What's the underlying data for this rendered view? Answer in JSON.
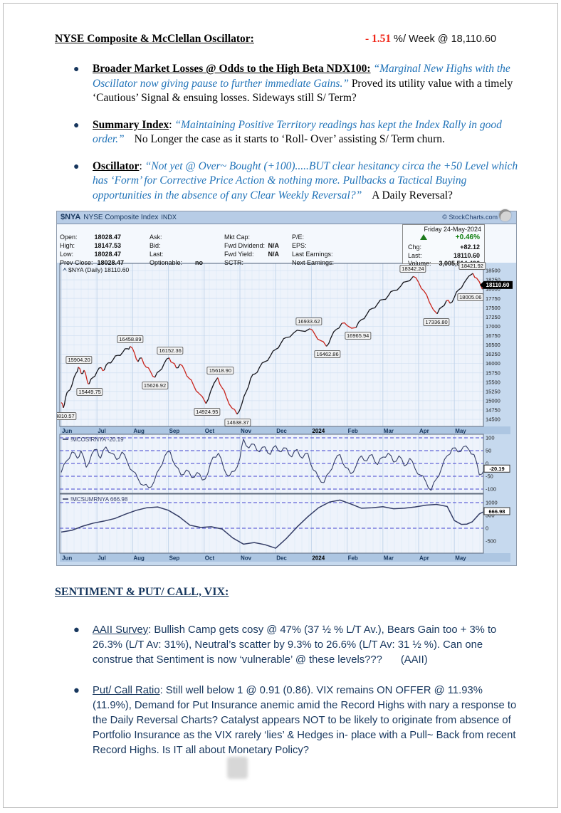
{
  "sec1": {
    "heading": "NYSE Composite & McClellan Oscillator:",
    "change": "- 1.51",
    "change_suffix": "%/ Week @ 18,110.60",
    "bullets": [
      {
        "lead": "Broader Market Losses @ Odds to the High Beta NDX100:",
        "sep": " ",
        "quote": "“Marginal New Highs with the Oscillator now giving pause to further immediate Gains.”",
        "tail": " Proved its utility value with a timely ‘Cautious’ Signal & ensuing losses. Sideways still S/ Term?"
      },
      {
        "lead": "Summary Index",
        "sep": ": ",
        "quote": "“Maintaining Positive Territory readings has kept the Index Rally in good order.”",
        "tail": "No Longer the case as it starts to ‘Roll- Over’ assisting S/ Term churn."
      },
      {
        "lead": "Oscillator",
        "sep": ": ",
        "quote": "“Not yet @ Over~ Bought (+100).....BUT clear hesitancy circa the +50 Level which has ‘Form’ for Corrective Price Action & nothing more. Pullbacks a Tactical Buying opportunities in the absence of any Clear Weekly Reversal?”",
        "tail": "A Daily Reversal?"
      }
    ]
  },
  "sec2": {
    "heading": "SENTIMENT & PUT/ CALL, VIX:",
    "bullets": [
      {
        "lead": "AAII Survey",
        "body": ": Bullish Camp gets cosy @ 47% (37 ½ % L/T Av.), Bears Gain too + 3% to 26.3% (L/T Av: 31%), Neutral’s scatter by 9.3% to 26.6% (L/T Av: 31 ½ %). Can one construe that Sentiment is now ‘vulnerable’ @ these levels???",
        "trail": "(AAII)"
      },
      {
        "lead": "Put/ Call Ratio",
        "body": ": Still well below 1 @ 0.91 (0.86). VIX remains ON OFFER @ 11.93% (11.9%), Demand for Put Insurance anemic amid the Record Highs with nary a response to the Daily Reversal Charts? Catalyst appears NOT to be likely to originate from absence of Portfolio Insurance as the VIX rarely ‘lies’ & Hedges in- place with a Pull~ Back from recent Record Highs. Is IT all about Monetary Policy?",
        "trail": ""
      }
    ]
  },
  "chart": {
    "symbol": "$NYA",
    "name": "NYSE Composite Index",
    "exchange": "INDX",
    "credit": "© StockCharts.com",
    "date": "Friday 24-May-2024",
    "quote": {
      "open_label": "Open:",
      "open": "18028.47",
      "high_label": "High:",
      "high": "18147.53",
      "low_label": "Low:",
      "low": "18028.47",
      "prev_label": "Prev Close:",
      "prev": "18028.47",
      "ask_label": "Ask:",
      "bid_label": "Bid:",
      "last_q_label": "Last:",
      "optionable_label": "Optionable:",
      "optionable": "no",
      "mktcap_label": "Mkt Cap:",
      "fwddiv_label": "Fwd Dividend:",
      "fwddiv": "N/A",
      "fwdyield_label": "Fwd Yield:",
      "fwdyield": "N/A",
      "sctr_label": "SCTR:",
      "pe_label": "P/E:",
      "eps_label": "EPS:",
      "lastearn_label": "Last Earnings:",
      "nextearn_label": "Next Earnings:",
      "pct_change": "+0.46%",
      "chg_label": "Chg:",
      "chg": "+82.12",
      "last_label": "Last:",
      "last": "18110.60",
      "volume_label": "Volume:",
      "volume": "3,005,514,496"
    },
    "colors": {
      "up": "#15151c",
      "down": "#c9241c",
      "line": "#343d66",
      "dashed": "#4343cf",
      "accent_green": "#0b7d0b",
      "accent_red": "#f02618"
    }
  },
  "chart_data": {
    "type": "mixed-timeseries",
    "title": "$NYA NYSE Composite Index (Daily) with McClellan Oscillator and Summation Index, Jun 2023 - May 2024",
    "months": [
      "Jun",
      "Jul",
      "Aug",
      "Sep",
      "Oct",
      "Nov",
      "Dec",
      "2024",
      "Feb",
      "Mar",
      "Apr",
      "May"
    ],
    "price": {
      "type": "ohlc-line",
      "legend": "$NYA (Daily) 18110.60",
      "last": 18110.6,
      "ylim": [
        14500,
        18500
      ],
      "ytick_step": 250,
      "series": [
        [
          0,
          14950
        ],
        [
          0.06,
          14810
        ],
        [
          0.12,
          15080
        ],
        [
          0.2,
          15260
        ],
        [
          0.3,
          15420
        ],
        [
          0.42,
          15750
        ],
        [
          0.48,
          15904
        ],
        [
          0.56,
          15730
        ],
        [
          0.64,
          15820
        ],
        [
          0.72,
          15560
        ],
        [
          0.78,
          15450
        ],
        [
          0.88,
          15620
        ],
        [
          1.0,
          15780
        ],
        [
          1.12,
          15890
        ],
        [
          1.2,
          15820
        ],
        [
          1.32,
          16020
        ],
        [
          1.45,
          16100
        ],
        [
          1.58,
          16220
        ],
        [
          1.72,
          16300
        ],
        [
          1.85,
          16400
        ],
        [
          1.93,
          16459
        ],
        [
          2.05,
          16280
        ],
        [
          2.15,
          16050
        ],
        [
          2.25,
          16150
        ],
        [
          2.38,
          15900
        ],
        [
          2.5,
          15780
        ],
        [
          2.62,
          15627
        ],
        [
          2.75,
          15800
        ],
        [
          2.88,
          16000
        ],
        [
          3.02,
          16152
        ],
        [
          3.12,
          16020
        ],
        [
          3.22,
          15880
        ],
        [
          3.32,
          15980
        ],
        [
          3.45,
          15820
        ],
        [
          3.58,
          15600
        ],
        [
          3.7,
          15420
        ],
        [
          3.85,
          15200
        ],
        [
          4.05,
          14925
        ],
        [
          4.18,
          15250
        ],
        [
          4.38,
          15619
        ],
        [
          4.5,
          15350
        ],
        [
          4.62,
          15100
        ],
        [
          4.78,
          14800
        ],
        [
          4.92,
          14638
        ],
        [
          5.05,
          14900
        ],
        [
          5.18,
          15250
        ],
        [
          5.3,
          15600
        ],
        [
          5.42,
          15720
        ],
        [
          5.55,
          15900
        ],
        [
          5.7,
          16050
        ],
        [
          5.85,
          16200
        ],
        [
          6.0,
          16380
        ],
        [
          6.15,
          16550
        ],
        [
          6.3,
          16700
        ],
        [
          6.5,
          16820
        ],
        [
          6.7,
          16880
        ],
        [
          6.95,
          16934
        ],
        [
          7.1,
          16780
        ],
        [
          7.25,
          16620
        ],
        [
          7.42,
          16463
        ],
        [
          7.55,
          16700
        ],
        [
          7.7,
          16920
        ],
        [
          7.85,
          17080
        ],
        [
          8.0,
          17020
        ],
        [
          8.25,
          16966
        ],
        [
          8.4,
          17180
        ],
        [
          8.55,
          17320
        ],
        [
          8.7,
          17480
        ],
        [
          8.85,
          17600
        ],
        [
          9.0,
          17720
        ],
        [
          9.15,
          17820
        ],
        [
          9.3,
          17960
        ],
        [
          9.5,
          18080
        ],
        [
          9.65,
          18200
        ],
        [
          9.85,
          18342
        ],
        [
          10.0,
          18180
        ],
        [
          10.15,
          17950
        ],
        [
          10.3,
          17650
        ],
        [
          10.52,
          17337
        ],
        [
          10.65,
          17520
        ],
        [
          10.78,
          17690
        ],
        [
          10.88,
          17620
        ],
        [
          11.0,
          17780
        ],
        [
          11.12,
          17980
        ],
        [
          11.28,
          18180
        ],
        [
          11.52,
          18422
        ],
        [
          11.62,
          18300
        ],
        [
          11.78,
          18005
        ],
        [
          11.85,
          18110.6
        ]
      ],
      "annotations": [
        {
          "u": 0.06,
          "v": 14810.57,
          "label": "14810.57",
          "pos": "below"
        },
        {
          "u": 0.5,
          "v": 15904.2,
          "label": "15904.20",
          "pos": "above"
        },
        {
          "u": 0.8,
          "v": 15449.75,
          "label": "15449.75",
          "pos": "below"
        },
        {
          "u": 1.93,
          "v": 16458.89,
          "label": "16458.89",
          "pos": "above"
        },
        {
          "u": 2.62,
          "v": 15626.92,
          "label": "15626.92",
          "pos": "below"
        },
        {
          "u": 3.05,
          "v": 16152.36,
          "label": "16152.36",
          "pos": "above"
        },
        {
          "u": 4.08,
          "v": 14924.95,
          "label": "14924.95",
          "pos": "below"
        },
        {
          "u": 4.45,
          "v": 15618.9,
          "label": "15618.90",
          "pos": "above"
        },
        {
          "u": 4.94,
          "v": 14638.37,
          "label": "14638.37",
          "pos": "below"
        },
        {
          "u": 6.93,
          "v": 16933.62,
          "label": "16933.62",
          "pos": "above"
        },
        {
          "u": 7.45,
          "v": 16462.86,
          "label": "16462.86",
          "pos": "below"
        },
        {
          "u": 8.3,
          "v": 16965.94,
          "label": "16965.94",
          "pos": "below"
        },
        {
          "u": 9.84,
          "v": 18342.24,
          "label": "18342.24",
          "pos": "above"
        },
        {
          "u": 10.5,
          "v": 17336.8,
          "label": "17336.80",
          "pos": "below"
        },
        {
          "u": 11.5,
          "v": 18421.92,
          "label": "18421.92",
          "pos": "above"
        },
        {
          "u": 11.45,
          "v": 18005.06,
          "label": "18005.06",
          "pos": "below"
        }
      ]
    },
    "oscillator": {
      "type": "line",
      "legend": "!MCOSIRNYA -20.19",
      "last": -20.19,
      "yticks": [
        100,
        50,
        0,
        -50,
        -100
      ],
      "series": [
        [
          0,
          -35
        ],
        [
          0.15,
          10
        ],
        [
          0.3,
          45
        ],
        [
          0.45,
          20
        ],
        [
          0.55,
          50
        ],
        [
          0.7,
          -15
        ],
        [
          0.85,
          35
        ],
        [
          1.0,
          55
        ],
        [
          1.1,
          20
        ],
        [
          1.25,
          65
        ],
        [
          1.4,
          40
        ],
        [
          1.55,
          15
        ],
        [
          1.7,
          45
        ],
        [
          1.85,
          5
        ],
        [
          2.0,
          -30
        ],
        [
          2.15,
          -60
        ],
        [
          2.3,
          -85
        ],
        [
          2.45,
          -95
        ],
        [
          2.6,
          -70
        ],
        [
          2.75,
          -20
        ],
        [
          2.9,
          30
        ],
        [
          3.05,
          45
        ],
        [
          3.2,
          -10
        ],
        [
          3.35,
          -45
        ],
        [
          3.5,
          -25
        ],
        [
          3.65,
          -55
        ],
        [
          3.8,
          -35
        ],
        [
          3.95,
          -65
        ],
        [
          4.1,
          -40
        ],
        [
          4.25,
          25
        ],
        [
          4.4,
          40
        ],
        [
          4.55,
          -20
        ],
        [
          4.7,
          -50
        ],
        [
          4.85,
          -30
        ],
        [
          5.0,
          20
        ],
        [
          5.1,
          95
        ],
        [
          5.25,
          60
        ],
        [
          5.4,
          75
        ],
        [
          5.55,
          45
        ],
        [
          5.7,
          65
        ],
        [
          5.85,
          35
        ],
        [
          6.0,
          70
        ],
        [
          6.15,
          45
        ],
        [
          6.3,
          60
        ],
        [
          6.45,
          25
        ],
        [
          6.6,
          55
        ],
        [
          6.75,
          20
        ],
        [
          6.9,
          40
        ],
        [
          7.05,
          -25
        ],
        [
          7.2,
          -55
        ],
        [
          7.35,
          -75
        ],
        [
          7.5,
          -35
        ],
        [
          7.65,
          10
        ],
        [
          7.8,
          35
        ],
        [
          7.95,
          -15
        ],
        [
          8.1,
          -40
        ],
        [
          8.25,
          -10
        ],
        [
          8.4,
          30
        ],
        [
          8.55,
          10
        ],
        [
          8.7,
          35
        ],
        [
          8.85,
          -5
        ],
        [
          9.0,
          25
        ],
        [
          9.15,
          40
        ],
        [
          9.3,
          5
        ],
        [
          9.45,
          30
        ],
        [
          9.6,
          -10
        ],
        [
          9.75,
          20
        ],
        [
          9.9,
          -20
        ],
        [
          10.05,
          -45
        ],
        [
          10.2,
          -70
        ],
        [
          10.35,
          -105
        ],
        [
          10.5,
          -60
        ],
        [
          10.65,
          -15
        ],
        [
          10.8,
          30
        ],
        [
          10.95,
          60
        ],
        [
          11.1,
          45
        ],
        [
          11.25,
          65
        ],
        [
          11.4,
          55
        ],
        [
          11.55,
          35
        ],
        [
          11.7,
          -45
        ],
        [
          11.85,
          -20.19
        ]
      ]
    },
    "summation": {
      "type": "line",
      "legend": "!MCSUMRNYA 666.98",
      "last": 666.98,
      "yticks": [
        1000,
        500,
        0,
        -500
      ],
      "dashed_levels": [
        1000,
        0
      ],
      "series": [
        [
          0,
          -150
        ],
        [
          0.3,
          -80
        ],
        [
          0.6,
          80
        ],
        [
          0.9,
          200
        ],
        [
          1.2,
          280
        ],
        [
          1.5,
          380
        ],
        [
          1.8,
          550
        ],
        [
          2.1,
          700
        ],
        [
          2.4,
          800
        ],
        [
          2.7,
          830
        ],
        [
          3.0,
          700
        ],
        [
          3.3,
          450
        ],
        [
          3.6,
          120
        ],
        [
          3.9,
          30
        ],
        [
          4.2,
          60
        ],
        [
          4.5,
          -30
        ],
        [
          4.8,
          -380
        ],
        [
          5.1,
          -620
        ],
        [
          5.4,
          -560
        ],
        [
          5.7,
          -640
        ],
        [
          6.0,
          -780
        ],
        [
          6.3,
          -400
        ],
        [
          6.6,
          50
        ],
        [
          6.9,
          450
        ],
        [
          7.2,
          800
        ],
        [
          7.5,
          1020
        ],
        [
          7.8,
          1100
        ],
        [
          8.1,
          950
        ],
        [
          8.4,
          780
        ],
        [
          8.7,
          800
        ],
        [
          9.0,
          840
        ],
        [
          9.3,
          760
        ],
        [
          9.6,
          780
        ],
        [
          9.9,
          830
        ],
        [
          10.2,
          900
        ],
        [
          10.5,
          930
        ],
        [
          10.8,
          850
        ],
        [
          11.0,
          300
        ],
        [
          11.2,
          150
        ],
        [
          11.35,
          160
        ],
        [
          11.5,
          250
        ],
        [
          11.7,
          560
        ],
        [
          11.85,
          666.98
        ]
      ]
    }
  }
}
